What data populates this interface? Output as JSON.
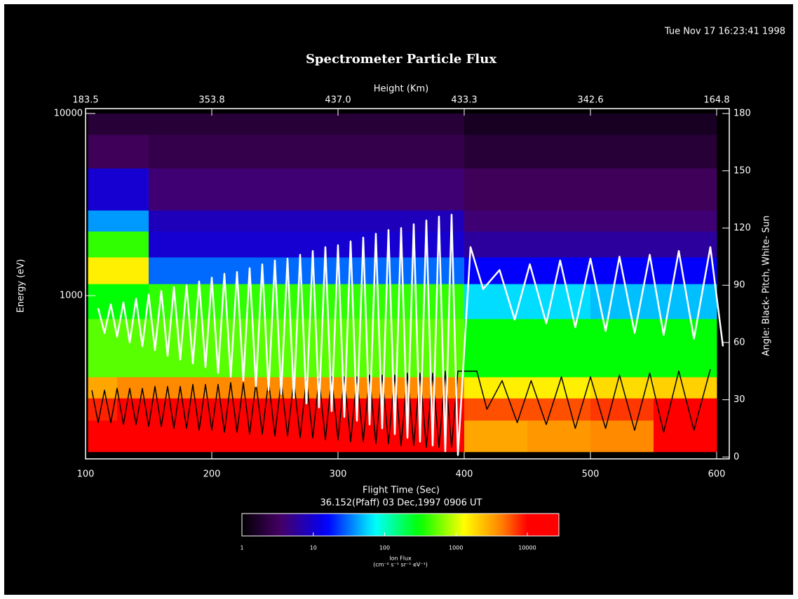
{
  "chart_data": {
    "type": "heatmap",
    "timestamp": "Tue Nov 17 16:23:41 1998",
    "title": "Spectrometer Particle Flux",
    "x2label": "Height (Km)",
    "xlabel": "Flight Time (Sec)",
    "subtitle": "36.152(Pfaff) 03 Dec,1997 0906 UT",
    "ylabel": "Energy (eV)",
    "y2label": "Angle: Black- Pitch, White- Sun",
    "xlim": [
      100,
      610
    ],
    "xticks": [
      100,
      200,
      300,
      400,
      500,
      600
    ],
    "x2ticks": [
      {
        "value": 100,
        "label": "183.5"
      },
      {
        "value": 200,
        "label": "353.8"
      },
      {
        "value": 300,
        "label": "437.0"
      },
      {
        "value": 400,
        "label": "433.3"
      },
      {
        "value": 500,
        "label": "342.6"
      },
      {
        "value": 600,
        "label": "164.8"
      }
    ],
    "ylim": [
      127,
      10640
    ],
    "ylog": true,
    "yticks": [
      1000,
      10000
    ],
    "y2lim": [
      -1,
      182.6
    ],
    "y2ticks": [
      0,
      30,
      60,
      90,
      120,
      150,
      180
    ],
    "time_bins": [
      102,
      125,
      150,
      200,
      250,
      300,
      350,
      400,
      450,
      500,
      550,
      600
    ],
    "energy_bins": [
      139,
      207,
      274,
      358,
      747,
      1162,
      1628,
      2258,
      2946,
      5012,
      7670,
      10000
    ],
    "flux": [
      [
        20000,
        20000,
        20000,
        20000,
        20000,
        20000,
        20000,
        3000,
        3500,
        4000,
        12000
      ],
      [
        8000,
        15000,
        15000,
        15000,
        15000,
        15000,
        15000,
        6000,
        6000,
        7000,
        12000
      ],
      [
        3000,
        4000,
        4000,
        4000,
        4000,
        4000,
        4000,
        1500,
        1500,
        1800,
        2000
      ],
      [
        500,
        500,
        500,
        500,
        500,
        500,
        500,
        300,
        300,
        300,
        300
      ],
      [
        300,
        300,
        400,
        400,
        400,
        400,
        400,
        60,
        60,
        50,
        50
      ],
      [
        1500,
        1500,
        30,
        30,
        30,
        30,
        30,
        15,
        15,
        15,
        15
      ],
      [
        400,
        400,
        10,
        10,
        10,
        10,
        10,
        6,
        6,
        6,
        6
      ],
      [
        40,
        40,
        8,
        8,
        8,
        8,
        8,
        4,
        4,
        4,
        4
      ],
      [
        10,
        10,
        4,
        4,
        4,
        4,
        4,
        3,
        3,
        3,
        3
      ],
      [
        3,
        3,
        2.5,
        2.5,
        2.5,
        2.5,
        2.5,
        2,
        2,
        2,
        2
      ],
      [
        2,
        2,
        2,
        2,
        2,
        2,
        2,
        1.5,
        1.5,
        1.5,
        1.5
      ]
    ],
    "colorbar": {
      "label": "Ion Flux",
      "units": "(cm⁻² s⁻¹ sr⁻¹ eV⁻¹)",
      "lim": [
        1,
        27700
      ],
      "ticks": [
        1,
        10,
        100,
        1000,
        10000
      ]
    },
    "series": [
      {
        "color": "#000000",
        "axis": "y2",
        "x": [
          105,
          110,
          115,
          120,
          125,
          130,
          135,
          140,
          145,
          150,
          155,
          160,
          165,
          170,
          175,
          180,
          185,
          190,
          195,
          200,
          205,
          210,
          215,
          220,
          225,
          230,
          235,
          240,
          245,
          250,
          255,
          260,
          265,
          270,
          275,
          280,
          285,
          290,
          295,
          300,
          305,
          310,
          315,
          320,
          325,
          330,
          335,
          340,
          345,
          350,
          355,
          360,
          365,
          370,
          375,
          380,
          385,
          390,
          395,
          410,
          418,
          430,
          442,
          453,
          465,
          477,
          488,
          500,
          512,
          523,
          535,
          547,
          558,
          570,
          582,
          595
        ],
        "values": [
          35,
          18,
          35,
          18,
          36,
          17,
          36,
          17,
          36,
          16,
          37,
          16,
          37,
          15,
          37,
          15,
          38,
          14,
          38,
          14,
          38,
          13,
          39,
          13,
          39,
          12,
          39,
          12,
          40,
          11,
          40,
          11,
          40,
          10,
          41,
          10,
          41,
          9,
          42,
          9,
          42,
          8,
          42,
          8,
          43,
          7,
          43,
          7,
          43,
          6,
          44,
          6,
          44,
          5,
          44,
          5,
          45,
          5,
          45,
          45,
          25,
          40,
          18,
          40,
          17,
          42,
          15,
          42,
          15,
          43,
          14,
          44,
          13,
          45,
          14,
          46
        ]
      },
      {
        "color": "#ffffff",
        "axis": "y2",
        "x": [
          110,
          115,
          120,
          125,
          130,
          135,
          140,
          145,
          150,
          155,
          160,
          165,
          170,
          175,
          180,
          185,
          190,
          195,
          200,
          205,
          210,
          215,
          220,
          225,
          230,
          235,
          240,
          245,
          250,
          255,
          260,
          265,
          270,
          275,
          280,
          285,
          290,
          295,
          300,
          305,
          310,
          315,
          320,
          325,
          330,
          335,
          340,
          345,
          350,
          355,
          360,
          365,
          370,
          375,
          380,
          385,
          390,
          395,
          405,
          415,
          428,
          440,
          452,
          465,
          476,
          488,
          500,
          512,
          523,
          535,
          547,
          558,
          570,
          582,
          595,
          605
        ],
        "values": [
          78,
          65,
          80,
          63,
          81,
          60,
          83,
          58,
          85,
          56,
          87,
          53,
          89,
          51,
          90,
          49,
          92,
          47,
          94,
          44,
          96,
          42,
          97,
          40,
          99,
          37,
          101,
          35,
          103,
          33,
          104,
          31,
          106,
          28,
          108,
          26,
          110,
          24,
          111,
          21,
          113,
          19,
          115,
          17,
          117,
          15,
          119,
          12,
          120,
          10,
          122,
          8,
          124,
          6,
          126,
          3,
          127,
          1,
          110,
          88,
          98,
          72,
          101,
          70,
          103,
          68,
          104,
          66,
          105,
          65,
          106,
          64,
          108,
          62,
          110,
          58
        ]
      }
    ]
  }
}
